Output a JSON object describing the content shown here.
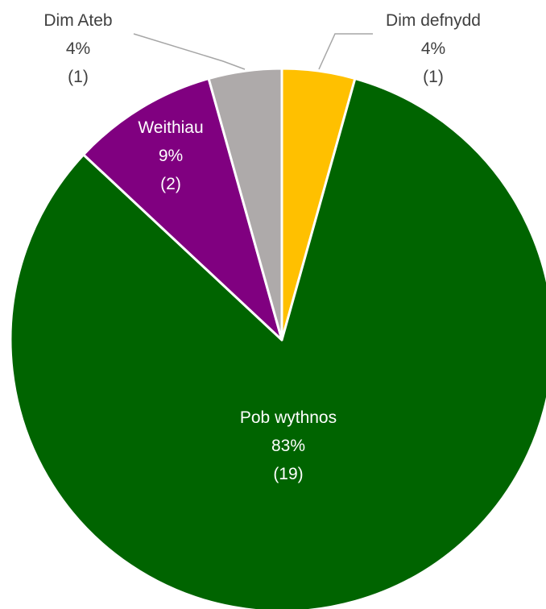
{
  "chart_data": {
    "type": "pie",
    "title": "",
    "slices": [
      {
        "label": "Dim defnydd",
        "percent_label": "4%",
        "count_label": "(1)",
        "value": 1,
        "color": "#FFC000",
        "label_position": "outside-right"
      },
      {
        "label": "Pob wythnos",
        "percent_label": "83%",
        "count_label": "(19)",
        "value": 19,
        "color": "#006400",
        "label_position": "inside"
      },
      {
        "label": "Weithiau",
        "percent_label": "9%",
        "count_label": "(2)",
        "value": 2,
        "color": "#800080",
        "label_position": "inside"
      },
      {
        "label": "Dim Ateb",
        "percent_label": "4%",
        "count_label": "(1)",
        "value": 1,
        "color": "#AEAAAA",
        "label_position": "outside-left"
      }
    ],
    "start_angle_deg": 0,
    "direction": "clockwise",
    "legend": "none"
  }
}
